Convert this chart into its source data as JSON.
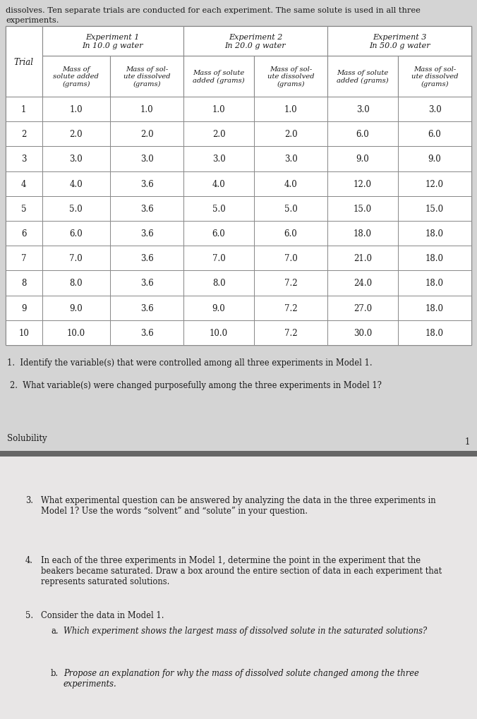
{
  "intro_text_line1": "dissolves. Ten separate trials are conducted for each experiment. The same solute is used in all three",
  "intro_text_line2": "experiments.",
  "exp1_header": "Experiment 1\nIn 10.0 g water",
  "exp2_header": "Experiment 2\nIn 20.0 g water",
  "exp3_header": "Experiment 3\nIn 50.0 g water",
  "col_sub1a": "Mass of\nsolute added\n(grams)",
  "col_sub1b": "Mass of sol-\nute dissolved\n(grams)",
  "col_sub2a": "Mass of solute\nadded (grams)",
  "col_sub2b": "Mass of sol-\nute dissolved\n(grams)",
  "col_sub3a": "Mass of solute\nadded (grams)",
  "col_sub3b": "Mass of sol-\nute dissolved\n(grams)",
  "trial_label": "Trial",
  "rows": [
    [
      1,
      1.0,
      1.0,
      1.0,
      1.0,
      3.0,
      3.0
    ],
    [
      2,
      2.0,
      2.0,
      2.0,
      2.0,
      6.0,
      6.0
    ],
    [
      3,
      3.0,
      3.0,
      3.0,
      3.0,
      9.0,
      9.0
    ],
    [
      4,
      4.0,
      3.6,
      4.0,
      4.0,
      12.0,
      12.0
    ],
    [
      5,
      5.0,
      3.6,
      5.0,
      5.0,
      15.0,
      15.0
    ],
    [
      6,
      6.0,
      3.6,
      6.0,
      6.0,
      18.0,
      18.0
    ],
    [
      7,
      7.0,
      3.6,
      7.0,
      7.0,
      21.0,
      18.0
    ],
    [
      8,
      8.0,
      3.6,
      8.0,
      7.2,
      24.0,
      18.0
    ],
    [
      9,
      9.0,
      3.6,
      9.0,
      7.2,
      27.0,
      18.0
    ],
    [
      10,
      10.0,
      3.6,
      10.0,
      7.2,
      30.0,
      18.0
    ]
  ],
  "q1": "1.  Identify the variable(s) that were controlled among all three experiments in Model 1.",
  "q2": "2.  What variable(s) were changed purposefully among the three experiments in Model 1?",
  "solubility": "Solubility",
  "page_num": "1",
  "q3_num": "3.",
  "q3_text": "What experimental question can be answered by analyzing the data in the three experiments in\nModel 1? Use the words “solvent” and “solute” in your question.",
  "q4_num": "4.",
  "q4_text": "In each of the three experiments in Model 1, determine the point in the experiment that the\nbeakers became saturated. Draw a box around the entire section of data in each experiment that\nrepresents saturated solutions.",
  "q5_num": "5.",
  "q5_text": "Consider the data in Model 1.",
  "q5a_num": "a.",
  "q5a_text": "Which experiment shows the largest mass of dissolved solute in the saturated solutions?",
  "q5b_num": "b.",
  "q5b_text": "Propose an explanation for why the mass of dissolved solute changed among the three\nexperiments.",
  "page1_bg": "#d4d4d4",
  "page2_bg": "#e8e6e6",
  "white": "#ffffff",
  "border_color": "#888888",
  "dark_border": "#555555",
  "text_color": "#1a1a1a"
}
